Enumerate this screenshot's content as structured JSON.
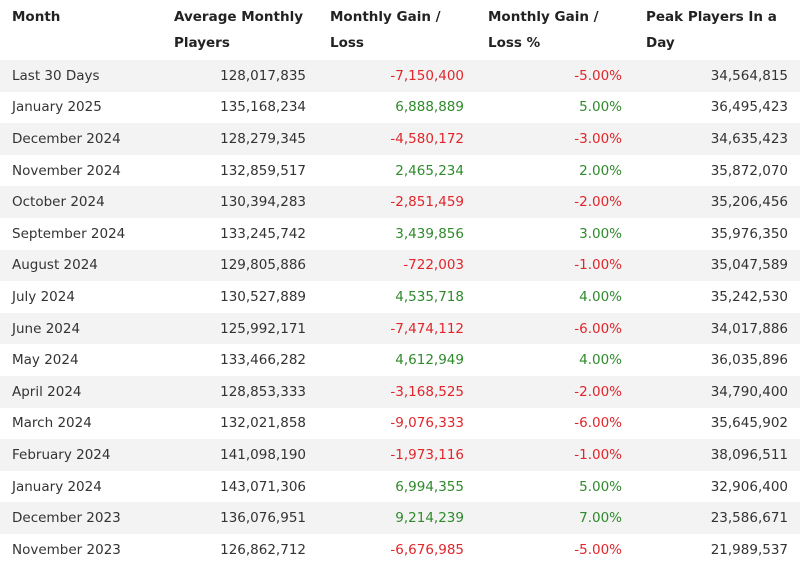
{
  "table": {
    "headers": [
      "Month",
      "Average Monthly Players",
      "Monthly Gain / Loss",
      "Monthly Gain / Loss %",
      "Peak Players In a Day"
    ],
    "rows": [
      {
        "month": "Last 30 Days",
        "avg": "128,017,835",
        "gain": "-7,150,400",
        "pct": "-5.00%",
        "peak": "34,564,815"
      },
      {
        "month": "January 2025",
        "avg": "135,168,234",
        "gain": "6,888,889",
        "pct": "5.00%",
        "peak": "36,495,423"
      },
      {
        "month": "December 2024",
        "avg": "128,279,345",
        "gain": "-4,580,172",
        "pct": "-3.00%",
        "peak": "34,635,423"
      },
      {
        "month": "November 2024",
        "avg": "132,859,517",
        "gain": "2,465,234",
        "pct": "2.00%",
        "peak": "35,872,070"
      },
      {
        "month": "October 2024",
        "avg": "130,394,283",
        "gain": "-2,851,459",
        "pct": "-2.00%",
        "peak": "35,206,456"
      },
      {
        "month": "September 2024",
        "avg": "133,245,742",
        "gain": "3,439,856",
        "pct": "3.00%",
        "peak": "35,976,350"
      },
      {
        "month": "August 2024",
        "avg": "129,805,886",
        "gain": "-722,003",
        "pct": "-1.00%",
        "peak": "35,047,589"
      },
      {
        "month": "July 2024",
        "avg": "130,527,889",
        "gain": "4,535,718",
        "pct": "4.00%",
        "peak": "35,242,530"
      },
      {
        "month": "June 2024",
        "avg": "125,992,171",
        "gain": "-7,474,112",
        "pct": "-6.00%",
        "peak": "34,017,886"
      },
      {
        "month": "May 2024",
        "avg": "133,466,282",
        "gain": "4,612,949",
        "pct": "4.00%",
        "peak": "36,035,896"
      },
      {
        "month": "April 2024",
        "avg": "128,853,333",
        "gain": "-3,168,525",
        "pct": "-2.00%",
        "peak": "34,790,400"
      },
      {
        "month": "March 2024",
        "avg": "132,021,858",
        "gain": "-9,076,333",
        "pct": "-6.00%",
        "peak": "35,645,902"
      },
      {
        "month": "February 2024",
        "avg": "141,098,190",
        "gain": "-1,973,116",
        "pct": "-1.00%",
        "peak": "38,096,511"
      },
      {
        "month": "January 2024",
        "avg": "143,071,306",
        "gain": "6,994,355",
        "pct": "5.00%",
        "peak": "32,906,400"
      },
      {
        "month": "December 2023",
        "avg": "136,076,951",
        "gain": "9,214,239",
        "pct": "7.00%",
        "peak": "23,586,671"
      },
      {
        "month": "November 2023",
        "avg": "126,862,712",
        "gain": "-6,676,985",
        "pct": "-5.00%",
        "peak": "21,989,537"
      }
    ]
  },
  "colors": {
    "negative": "#e0262b",
    "positive": "#2f8a2c",
    "stripe": "#f3f3f3"
  }
}
